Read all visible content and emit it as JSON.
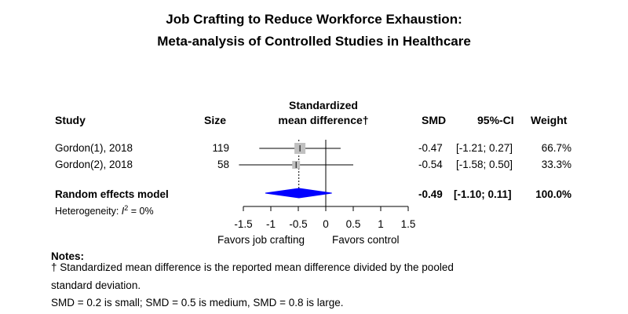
{
  "title_line1": "Job Crafting to Reduce Workforce Exhaustion:",
  "title_line2": "Meta-analysis of Controlled Studies in Healthcare",
  "headers": {
    "study": "Study",
    "size": "Size",
    "smd_line1": "Standardized",
    "smd_line2": "mean difference†",
    "smd": "SMD",
    "ci": "95%-CI",
    "weight": "Weight"
  },
  "rows": [
    {
      "study": "Gordon(1), 2018",
      "size": "119",
      "smd": "-0.47",
      "ci": "[-1.21; 0.27]",
      "weight": "66.7%"
    },
    {
      "study": "Gordon(2), 2018",
      "size": "58",
      "smd": "-0.54",
      "ci": "[-1.58; 0.50]",
      "weight": "33.3%"
    }
  ],
  "summary": {
    "label": "Random effects model",
    "smd": "-0.49",
    "ci": "[-1.10; 0.11]",
    "weight": "100.0%"
  },
  "heterogeneity": {
    "prefix": "Heterogeneity: ",
    "stat": "I",
    "sup": "2",
    "value": " = 0%"
  },
  "favors_left": "Favors job crafting",
  "favors_right": "Favors control",
  "notes": {
    "heading": "Notes:",
    "line1": "† Standardized mean difference is the reported mean difference divided by the pooled",
    "line2": "standard deviation.",
    "line3": "SMD = 0.2 is small; SMD = 0.5 is medium, SMD = 0.8 is large."
  },
  "chart_data": {
    "type": "forest",
    "xlim": [
      -1.5,
      1.5
    ],
    "ticks": [
      "-1.5",
      "-1",
      "-0.5",
      "0",
      "0.5",
      "1",
      "1.5"
    ],
    "tick_values": [
      -1.5,
      -1,
      -0.5,
      0,
      0.5,
      1,
      1.5
    ],
    "studies": [
      {
        "name": "Gordon(1), 2018",
        "n": 119,
        "smd": -0.47,
        "lower": -1.21,
        "upper": 0.27,
        "weight": 66.7
      },
      {
        "name": "Gordon(2), 2018",
        "n": 58,
        "smd": -0.54,
        "lower": -1.58,
        "upper": 0.5,
        "weight": 33.3
      }
    ],
    "pooled": {
      "smd": -0.49,
      "lower": -1.1,
      "upper": 0.11
    },
    "colors": {
      "square": "#c0c0c0",
      "diamond": "#0000ff",
      "line": "#000000"
    }
  }
}
